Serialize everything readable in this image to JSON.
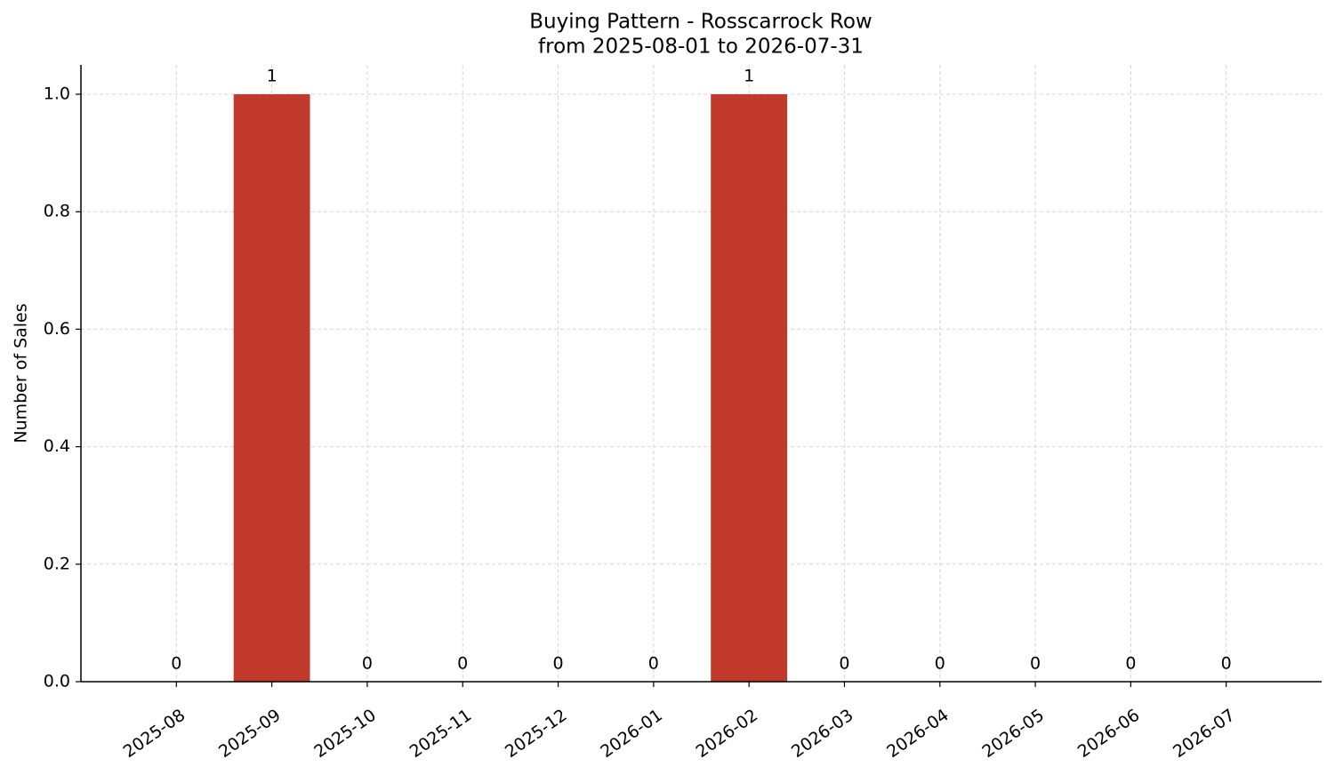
{
  "chart_data": {
    "type": "bar",
    "title": "Buying Pattern - Rosscarrock Row",
    "subtitle": "from 2025-08-01 to 2026-07-31",
    "y_label": "Number of Sales",
    "categories": [
      "2025-08",
      "2025-09",
      "2025-10",
      "2025-11",
      "2025-12",
      "2026-01",
      "2026-02",
      "2026-03",
      "2026-04",
      "2026-05",
      "2026-06",
      "2026-07"
    ],
    "values": [
      0,
      1,
      0,
      0,
      0,
      0,
      1,
      0,
      0,
      0,
      0,
      0
    ],
    "color": "#c0392b",
    "ylim": [
      0,
      1.05
    ],
    "yticks": [
      {
        "value": 0,
        "label": "0.0"
      },
      0.2,
      0.4,
      0.6,
      0.8,
      {
        "value": 1,
        "label": "1.0"
      }
    ],
    "grid": true
  }
}
